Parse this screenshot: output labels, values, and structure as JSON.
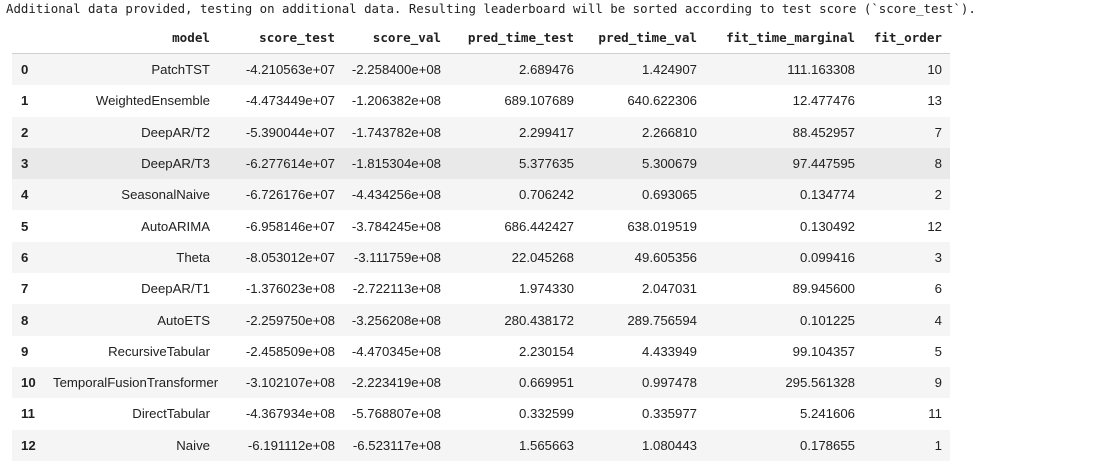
{
  "message": "Additional data provided, testing on additional data. Resulting leaderboard will be sorted according to test score (`score_test`).",
  "table": {
    "columns": [
      "",
      "model",
      "score_test",
      "score_val",
      "pred_time_test",
      "pred_time_val",
      "fit_time_marginal",
      "fit_order"
    ],
    "rows": [
      [
        "0",
        "PatchTST",
        "-4.210563e+07",
        "-2.258400e+08",
        "2.689476",
        "1.424907",
        "111.163308",
        "10"
      ],
      [
        "1",
        "WeightedEnsemble",
        "-4.473449e+07",
        "-1.206382e+08",
        "689.107689",
        "640.622306",
        "12.477476",
        "13"
      ],
      [
        "2",
        "DeepAR/T2",
        "-5.390044e+07",
        "-1.743782e+08",
        "2.299417",
        "2.266810",
        "88.452957",
        "7"
      ],
      [
        "3",
        "DeepAR/T3",
        "-6.277614e+07",
        "-1.815304e+08",
        "5.377635",
        "5.300679",
        "97.447595",
        "8"
      ],
      [
        "4",
        "SeasonalNaive",
        "-6.726176e+07",
        "-4.434256e+08",
        "0.706242",
        "0.693065",
        "0.134774",
        "2"
      ],
      [
        "5",
        "AutoARIMA",
        "-6.958146e+07",
        "-3.784245e+08",
        "686.442427",
        "638.019519",
        "0.130492",
        "12"
      ],
      [
        "6",
        "Theta",
        "-8.053012e+07",
        "-3.111759e+08",
        "22.045268",
        "49.605356",
        "0.099416",
        "3"
      ],
      [
        "7",
        "DeepAR/T1",
        "-1.376023e+08",
        "-2.722113e+08",
        "1.974330",
        "2.047031",
        "89.945600",
        "6"
      ],
      [
        "8",
        "AutoETS",
        "-2.259750e+08",
        "-3.256208e+08",
        "280.438172",
        "289.756594",
        "0.101225",
        "4"
      ],
      [
        "9",
        "RecursiveTabular",
        "-2.458509e+08",
        "-4.470345e+08",
        "2.230154",
        "4.433949",
        "99.104357",
        "5"
      ],
      [
        "10",
        "TemporalFusionTransformer",
        "-3.102107e+08",
        "-2.223419e+08",
        "0.669951",
        "0.997478",
        "295.561328",
        "9"
      ],
      [
        "11",
        "DirectTabular",
        "-4.367934e+08",
        "-5.768807e+08",
        "0.332599",
        "0.335977",
        "5.241606",
        "11"
      ],
      [
        "12",
        "Naive",
        "-6.191112e+08",
        "-6.523117e+08",
        "1.565663",
        "1.080443",
        "0.178655",
        "1"
      ]
    ],
    "hovered_row": 3
  }
}
